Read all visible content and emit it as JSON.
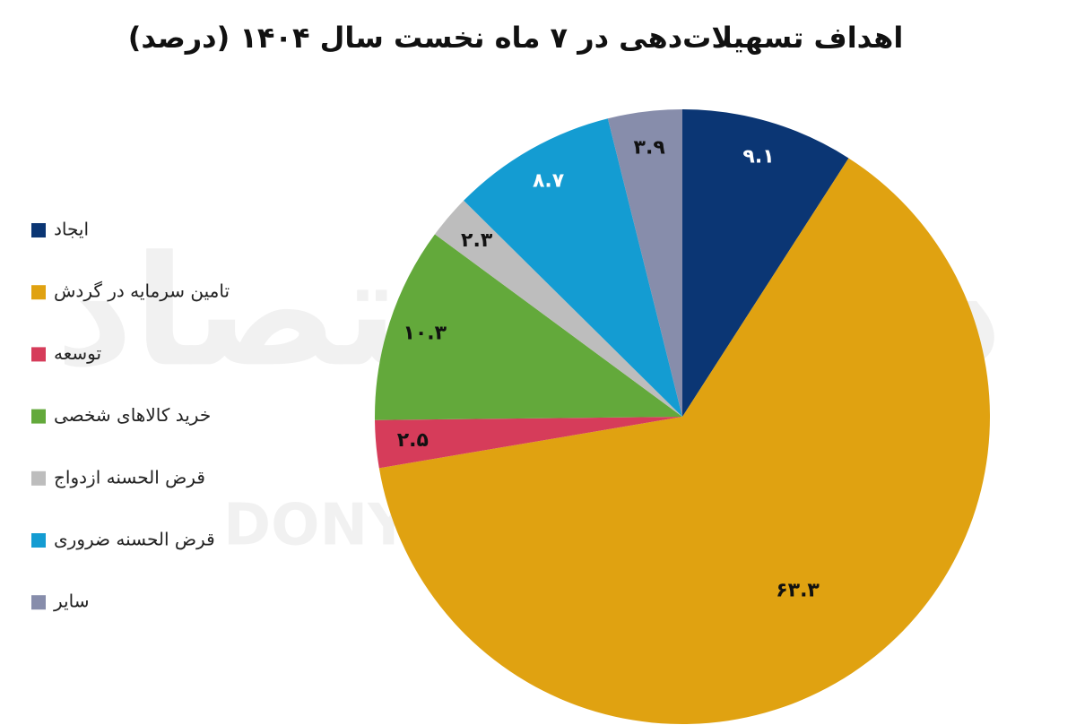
{
  "chart_data": {
    "type": "pie",
    "title": "اهداف تسهیلات‌دهی در ۷ ماه نخست سال ۱۴۰۴ (درصد)",
    "watermark": [
      "دنیای اقتصاد",
      "DONYA-E-EQTESAD"
    ],
    "categories": [
      "ایجاد",
      "تامین سرمایه در گردش",
      "توسعه",
      "خرید کالاهای شخصی",
      "قرض الحسنه ازدواج",
      "قرض الحسنه ضروری",
      "سایر"
    ],
    "values": [
      9.1,
      63.3,
      2.5,
      10.3,
      2.3,
      8.7,
      3.9
    ],
    "value_labels": [
      "۹.۱",
      "۶۳.۳",
      "۲.۵",
      "۱۰.۳",
      "۲.۳",
      "۸.۷",
      "۳.۹"
    ],
    "colors": [
      "#0b3674",
      "#e0a211",
      "#d63c5a",
      "#63a93b",
      "#bdbdbd",
      "#149cd2",
      "#878dab"
    ],
    "legend": "left"
  }
}
